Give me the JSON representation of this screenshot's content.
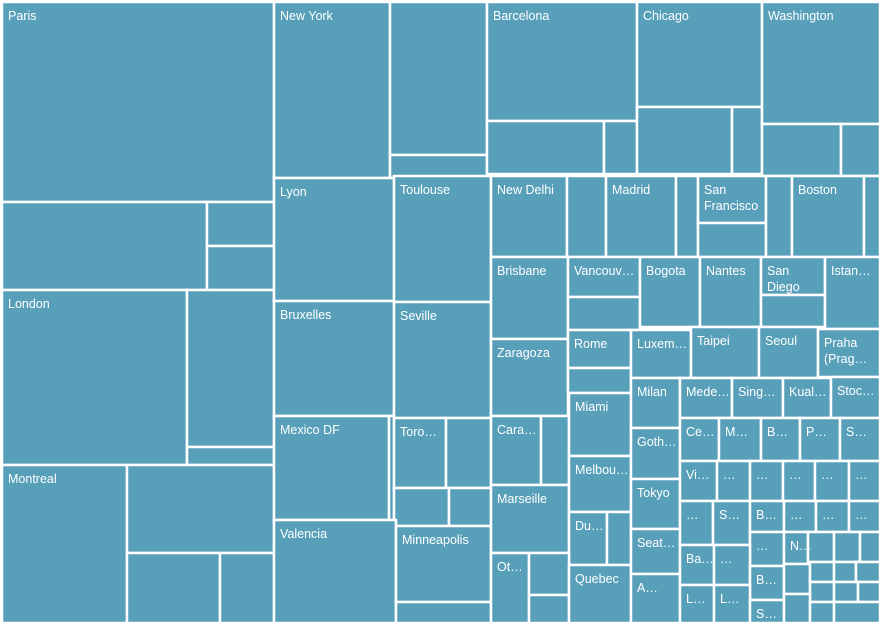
{
  "chart_data": {
    "type": "treemap",
    "title": "",
    "color": "#589fba",
    "cells": [
      {
        "label": "Paris",
        "value": 100
      },
      {
        "label": "",
        "value": 36
      },
      {
        "label": "",
        "value": 7
      },
      {
        "label": "",
        "value": 7
      },
      {
        "label": "London",
        "value": 67
      },
      {
        "label": "",
        "value": 32
      },
      {
        "label": "",
        "value": 3
      },
      {
        "label": "Montreal",
        "value": 32
      },
      {
        "label": "",
        "value": 23
      },
      {
        "label": "",
        "value": 17
      },
      {
        "label": "",
        "value": 9
      },
      {
        "label": "New York",
        "value": 41
      },
      {
        "label": "",
        "value": 34
      },
      {
        "label": "",
        "value": 4
      },
      {
        "label": "Barcelona",
        "value": 36
      },
      {
        "label": "",
        "value": 22
      },
      {
        "label": "",
        "value": 6
      },
      {
        "label": "Chicago",
        "value": 30
      },
      {
        "label": "",
        "value": 18
      },
      {
        "label": "",
        "value": 5
      },
      {
        "label": "Washington",
        "value": 28
      },
      {
        "label": "",
        "value": 16
      },
      {
        "label": "",
        "value": 8
      },
      {
        "label": "Lyon",
        "value": 27
      },
      {
        "label": "Toulouse",
        "value": 29
      },
      {
        "label": "Bruxelles",
        "value": 26
      },
      {
        "label": "Seville",
        "value": 26
      },
      {
        "label": "Mexico DF",
        "value": 23
      },
      {
        "label": "",
        "value": 1
      },
      {
        "label": "Toronto",
        "value": 12
      },
      {
        "label": "",
        "value": 11
      },
      {
        "label": "",
        "value": 9
      },
      {
        "label": "",
        "value": 7
      },
      {
        "label": "Valencia",
        "value": 22
      },
      {
        "label": "Minneapolis",
        "value": 16
      },
      {
        "label": "",
        "value": 4
      },
      {
        "label": "New Delhi",
        "value": 14
      },
      {
        "label": "",
        "value": 8
      },
      {
        "label": "Madrid",
        "value": 12
      },
      {
        "label": "",
        "value": 3
      },
      {
        "label": "San Francisco",
        "value": 8
      },
      {
        "label": "",
        "value": 6
      },
      {
        "label": "",
        "value": 4
      },
      {
        "label": "Boston",
        "value": 13
      },
      {
        "label": "",
        "value": 2
      },
      {
        "label": "Brisbane",
        "value": 12
      },
      {
        "label": "Vancouver",
        "value": 9
      },
      {
        "label": "",
        "value": 5
      },
      {
        "label": "Bogota",
        "value": 9
      },
      {
        "label": "Nantes",
        "value": 9
      },
      {
        "label": "San Diego",
        "value": 6
      },
      {
        "label": "",
        "value": 4
      },
      {
        "label": "Istanbul",
        "value": 8
      },
      {
        "label": "Zaragoza",
        "value": 10
      },
      {
        "label": "Rome",
        "value": 5
      },
      {
        "label": "",
        "value": 4
      },
      {
        "label": "Luxembourg",
        "value": 6
      },
      {
        "label": "Taipei",
        "value": 6
      },
      {
        "label": "Seoul",
        "value": 5
      },
      {
        "label": "Praha (Prague)",
        "value": 6
      },
      {
        "label": "Caracas",
        "value": 8
      },
      {
        "label": "",
        "value": 3
      },
      {
        "label": "Miami",
        "value": 8
      },
      {
        "label": "Milan",
        "value": 4
      },
      {
        "label": "Medellin",
        "value": 3
      },
      {
        "label": "Singapore",
        "value": 3
      },
      {
        "label": "Kuala Lumpur",
        "value": 3
      },
      {
        "label": "Stockholm",
        "value": 3
      },
      {
        "label": "Marseille",
        "value": 9
      },
      {
        "label": "Melbourne",
        "value": 6
      },
      {
        "label": "Gothenburg",
        "value": 4
      },
      {
        "label": "Ce…",
        "value": 3
      },
      {
        "label": "M…",
        "value": 2
      },
      {
        "label": "B…",
        "value": 2
      },
      {
        "label": "P…",
        "value": 2
      },
      {
        "label": "S…",
        "value": 2
      },
      {
        "label": "Dubai",
        "value": 4
      },
      {
        "label": "",
        "value": 2
      },
      {
        "label": "Tokyo",
        "value": 4
      },
      {
        "label": "Vi…",
        "value": 3
      },
      {
        "label": "…",
        "value": 2
      },
      {
        "label": "…",
        "value": 2
      },
      {
        "label": "…",
        "value": 2
      },
      {
        "label": "…",
        "value": 1
      },
      {
        "label": "…",
        "value": 1
      },
      {
        "label": "Ottawa",
        "value": 5
      },
      {
        "label": "",
        "value": 3
      },
      {
        "label": "",
        "value": 4
      },
      {
        "label": "Quebec",
        "value": 5
      },
      {
        "label": "Seattle",
        "value": 4
      },
      {
        "label": "…",
        "value": 2
      },
      {
        "label": "S…",
        "value": 2
      },
      {
        "label": "B…",
        "value": 2
      },
      {
        "label": "…",
        "value": 1
      },
      {
        "label": "…",
        "value": 1
      },
      {
        "label": "…",
        "value": 1
      },
      {
        "label": "…",
        "value": 1
      },
      {
        "label": "A…",
        "value": 1
      },
      {
        "label": "Ba…",
        "value": 3
      },
      {
        "label": "…",
        "value": 2
      },
      {
        "label": "B…",
        "value": 2
      },
      {
        "label": "L…",
        "value": 2
      },
      {
        "label": "L…",
        "value": 2
      },
      {
        "label": "S…",
        "value": 2
      },
      {
        "label": "N…",
        "value": 2
      },
      {
        "label": "",
        "value": 1
      },
      {
        "label": "",
        "value": 1
      },
      {
        "label": "",
        "value": 1
      },
      {
        "label": "",
        "value": 1
      },
      {
        "label": "",
        "value": 1
      },
      {
        "label": "",
        "value": 1
      },
      {
        "label": "",
        "value": 1
      },
      {
        "label": "",
        "value": 1
      },
      {
        "label": "",
        "value": 1
      },
      {
        "label": "",
        "value": 1
      },
      {
        "label": "",
        "value": 1
      },
      {
        "label": "",
        "value": 1
      },
      {
        "label": "",
        "value": 1
      },
      {
        "label": "",
        "value": 1
      }
    ]
  }
}
